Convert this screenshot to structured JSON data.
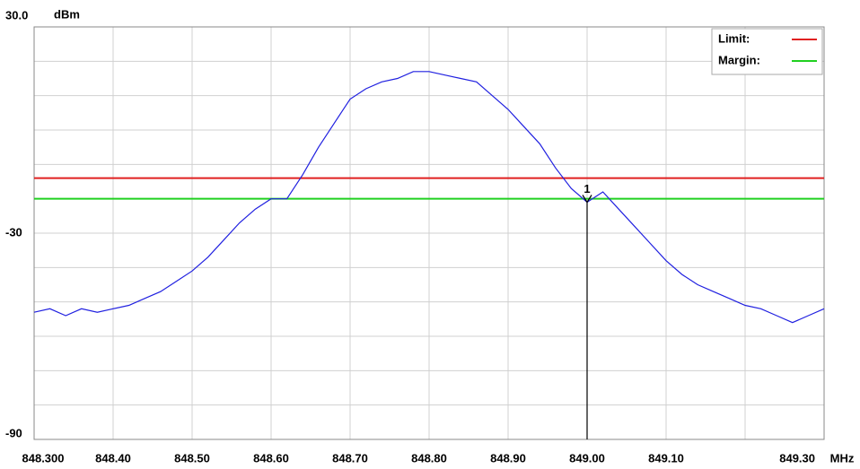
{
  "chart_data": {
    "type": "line",
    "y_unit": "dBm",
    "x_unit": "MHz",
    "xlim": [
      848.3,
      849.3
    ],
    "ylim": [
      -90,
      30
    ],
    "xticks": [
      {
        "value": 848.3,
        "label": "848.300"
      },
      {
        "value": 848.4,
        "label": "848.40"
      },
      {
        "value": 848.5,
        "label": "848.50"
      },
      {
        "value": 848.6,
        "label": "848.60"
      },
      {
        "value": 848.7,
        "label": "848.70"
      },
      {
        "value": 848.8,
        "label": "848.80"
      },
      {
        "value": 848.9,
        "label": "848.90"
      },
      {
        "value": 849.0,
        "label": "849.00"
      },
      {
        "value": 849.1,
        "label": "849.10"
      },
      {
        "value": 849.3,
        "label": "849.30"
      }
    ],
    "xgrid": [
      848.3,
      848.4,
      848.5,
      848.6,
      848.7,
      848.8,
      848.9,
      849.0,
      849.1,
      849.2,
      849.3
    ],
    "yticks": [
      {
        "value": 30,
        "label": "30.0"
      },
      -30,
      -90
    ],
    "ygrid": [
      -90,
      -80,
      -70,
      -60,
      -50,
      -40,
      -30,
      -20,
      -10,
      0,
      10,
      20,
      30
    ],
    "grid": true,
    "legend": "top-right",
    "series": [
      {
        "color": "#2020e0",
        "x": [
          848.3,
          848.32,
          848.34,
          848.36,
          848.38,
          848.4,
          848.42,
          848.44,
          848.46,
          848.48,
          848.5,
          848.52,
          848.54,
          848.56,
          848.58,
          848.6,
          848.62,
          848.64,
          848.66,
          848.68,
          848.7,
          848.72,
          848.74,
          848.76,
          848.78,
          848.8,
          848.82,
          848.84,
          848.86,
          848.88,
          848.9,
          848.92,
          848.94,
          848.96,
          848.98,
          849.0,
          849.02,
          849.04,
          849.06,
          849.08,
          849.1,
          849.12,
          849.14,
          849.16,
          849.18,
          849.2,
          849.22,
          849.24,
          849.26,
          849.28,
          849.3
        ],
        "values": [
          -53,
          -52,
          -54,
          -52,
          -53,
          -52,
          -51,
          -49,
          -47,
          -44,
          -41,
          -37,
          -32,
          -27,
          -23,
          -20,
          -20,
          -13,
          -5,
          2,
          9,
          12,
          14,
          15,
          17,
          17,
          16,
          15,
          14,
          10,
          6,
          1,
          -4,
          -11,
          -17,
          -21,
          -18,
          -23,
          -28,
          -33,
          -38,
          -42,
          -45,
          -47,
          -49,
          -51,
          -52,
          -54,
          -56,
          -54,
          -52
        ]
      }
    ],
    "limit_lines": [
      {
        "name": "Limit:",
        "color": "#e02020",
        "value": -14
      },
      {
        "name": "Margin:",
        "color": "#20d020",
        "value": -20
      }
    ],
    "marker": {
      "label": "1",
      "x": 849.0,
      "value": -21
    }
  }
}
